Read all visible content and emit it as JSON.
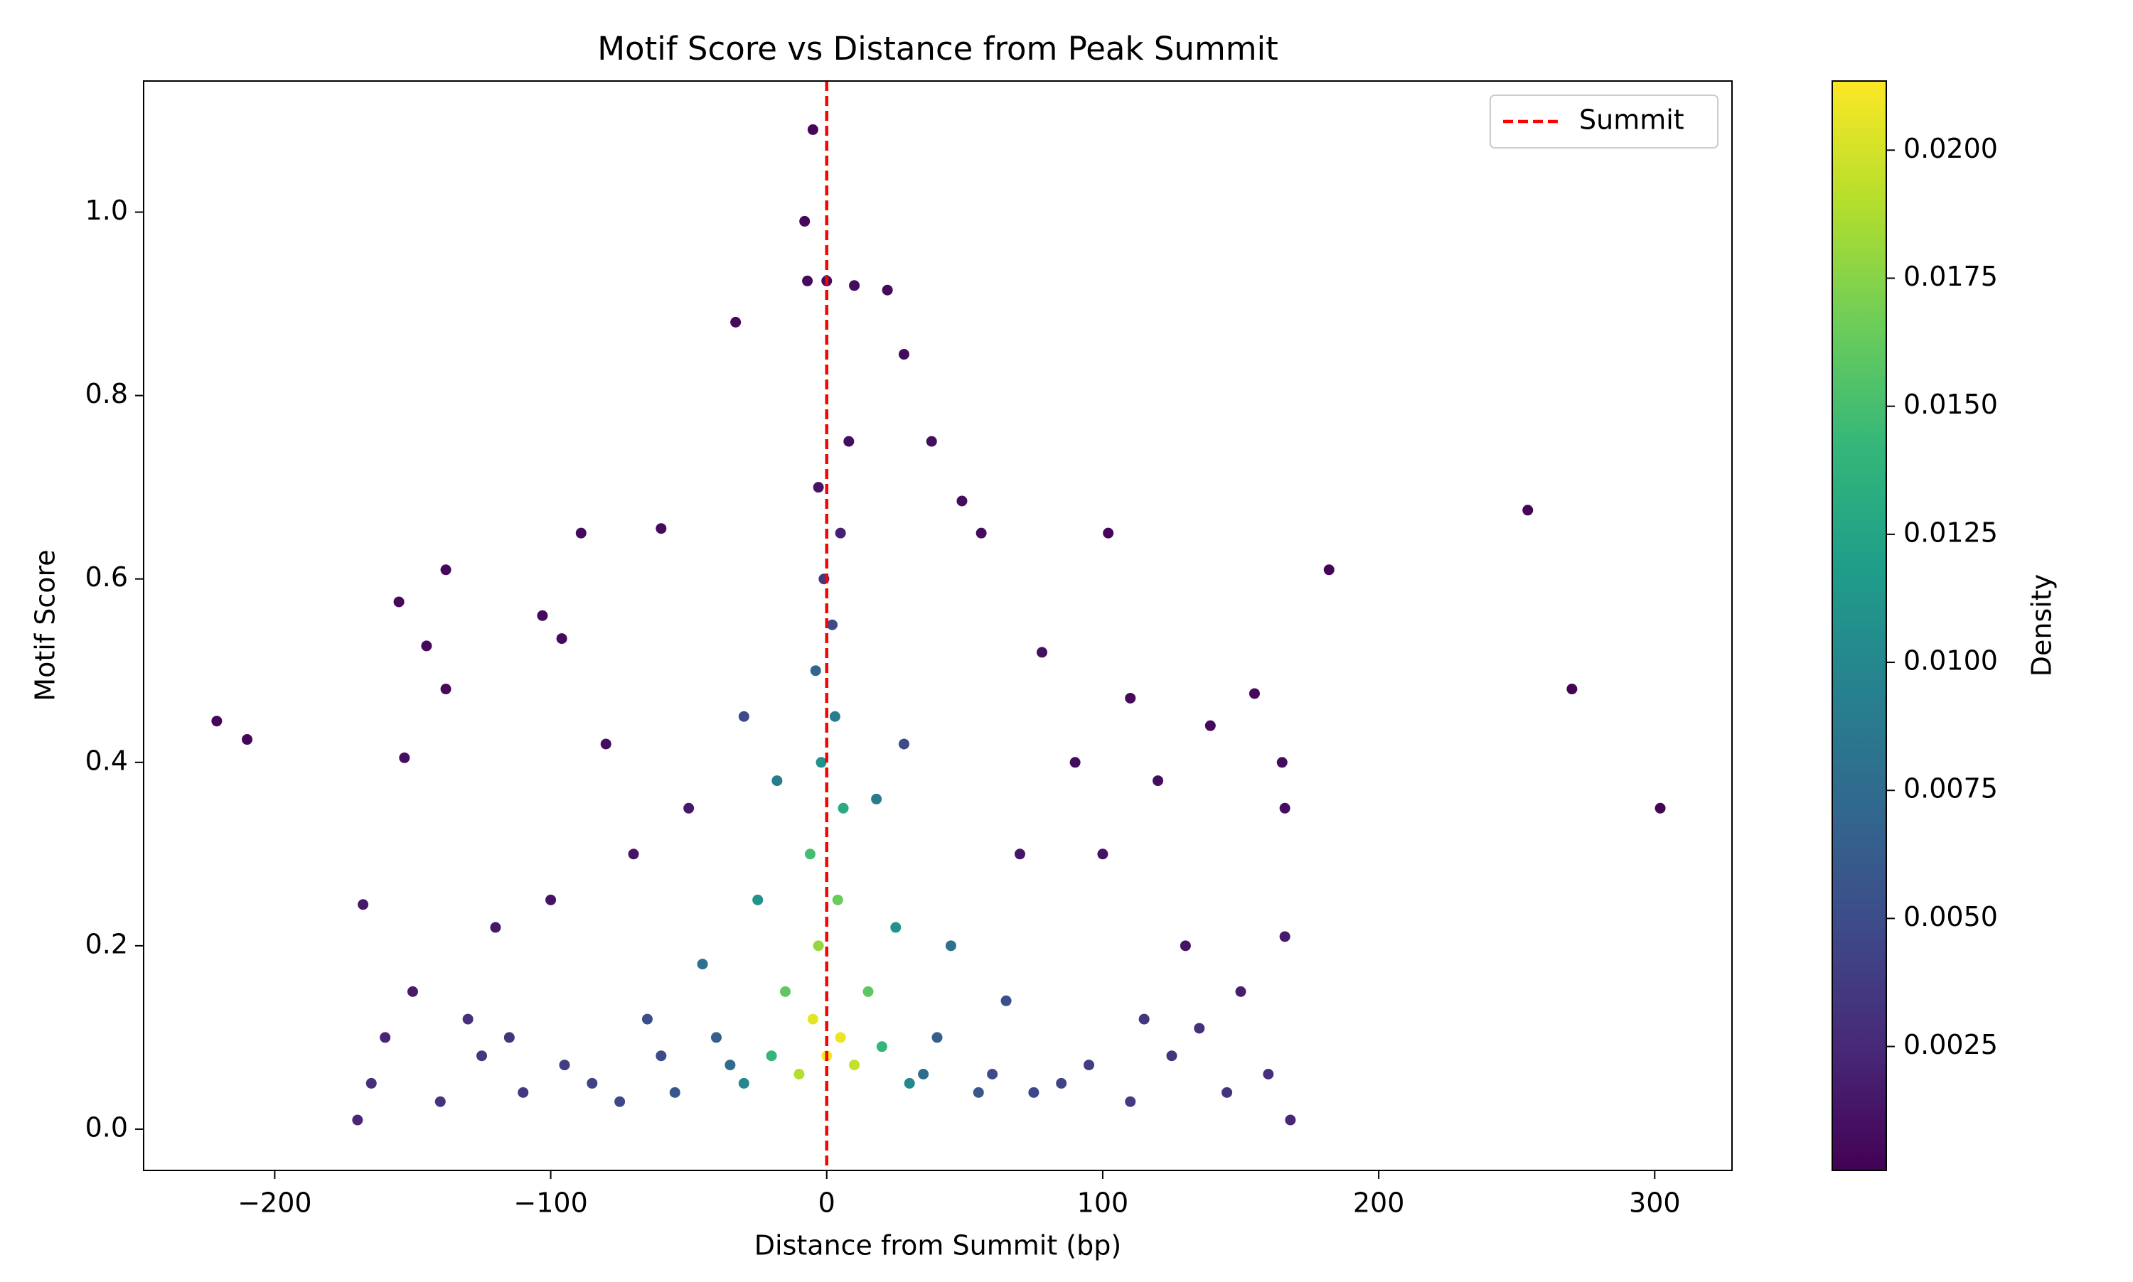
{
  "chart_data": {
    "type": "scatter",
    "title": "Motif Score vs Distance from Peak Summit",
    "x_label": "Distance from Summit (bp)",
    "y_label": "Motif Score",
    "colorbar_label": "Density",
    "colormap": "viridis",
    "xlim": [
      -247.5,
      328
    ],
    "ylim": [
      -0.045,
      1.143
    ],
    "clim": [
      8e-05,
      0.02135
    ],
    "xticks": [
      {
        "value": -200,
        "label": "−200"
      },
      {
        "value": -100,
        "label": "−100"
      },
      0,
      100,
      200,
      300
    ],
    "yticks": [
      {
        "value": 0,
        "label": "0.0"
      },
      0.2,
      0.4,
      0.6,
      0.8,
      {
        "value": 1,
        "label": "1.0"
      }
    ],
    "cticks": [
      0.0025,
      {
        "value": 0.005,
        "label": "0.0050"
      },
      0.0075,
      {
        "value": 0.01,
        "label": "0.0100"
      },
      0.0125,
      {
        "value": 0.015,
        "label": "0.0150"
      },
      0.0175,
      {
        "value": 0.02,
        "label": "0.0200"
      }
    ],
    "vline": {
      "x": 0,
      "name": "Summit",
      "color": "#ff0000"
    },
    "legend": "upper right",
    "series": [
      {
        "x": [
          -221,
          -210,
          -5,
          -8,
          254,
          270,
          302,
          182,
          102,
          -138,
          -155,
          -89,
          -60,
          -103,
          -96,
          -145,
          -138,
          155,
          110,
          139,
          165,
          166,
          -33,
          -7,
          0,
          10,
          22,
          28,
          38,
          49,
          56,
          78,
          -153,
          -168,
          166,
          120,
          -80,
          90,
          -3,
          8,
          -100,
          100,
          -120,
          -70,
          70,
          130,
          -50,
          150,
          -150,
          -160,
          -170,
          168,
          -165,
          -140,
          -125,
          -110,
          -95,
          160,
          145,
          125,
          110,
          95,
          -130,
          -115,
          -85,
          135,
          115,
          85,
          -75,
          75,
          -60,
          60,
          -30,
          28,
          5,
          -1,
          2,
          -4,
          -65,
          65,
          -40,
          40,
          -18,
          18,
          -55,
          55,
          -35,
          35,
          -25,
          25,
          -45,
          45,
          -30,
          30,
          3,
          -2,
          -20,
          20,
          6,
          -6,
          -15,
          15,
          4,
          -3,
          -10,
          10,
          5,
          -5,
          0
        ],
        "values": [
          0.445,
          0.425,
          1.09,
          0.99,
          0.675,
          0.48,
          0.35,
          0.61,
          0.65,
          0.61,
          0.575,
          0.65,
          0.655,
          0.56,
          0.535,
          0.527,
          0.48,
          0.475,
          0.47,
          0.44,
          0.4,
          0.35,
          0.88,
          0.925,
          0.925,
          0.92,
          0.915,
          0.845,
          0.75,
          0.685,
          0.65,
          0.52,
          0.405,
          0.245,
          0.21,
          0.38,
          0.42,
          0.4,
          0.7,
          0.75,
          0.25,
          0.3,
          0.22,
          0.3,
          0.3,
          0.2,
          0.35,
          0.15,
          0.15,
          0.1,
          0.01,
          0.01,
          0.05,
          0.03,
          0.08,
          0.04,
          0.07,
          0.06,
          0.04,
          0.08,
          0.03,
          0.07,
          0.12,
          0.1,
          0.05,
          0.11,
          0.12,
          0.05,
          0.03,
          0.04,
          0.08,
          0.06,
          0.45,
          0.42,
          0.65,
          0.6,
          0.55,
          0.5,
          0.12,
          0.14,
          0.1,
          0.1,
          0.38,
          0.36,
          0.04,
          0.04,
          0.07,
          0.06,
          0.25,
          0.22,
          0.18,
          0.2,
          0.05,
          0.05,
          0.45,
          0.4,
          0.08,
          0.09,
          0.35,
          0.3,
          0.15,
          0.15,
          0.25,
          0.2,
          0.06,
          0.07,
          0.1,
          0.12,
          0.08
        ],
        "density": [
          0.0004,
          0.0004,
          0.0004,
          0.0005,
          0.0003,
          0.0003,
          0.0003,
          0.0003,
          0.0004,
          0.0005,
          0.0005,
          0.0006,
          0.0007,
          0.0006,
          0.0006,
          0.0005,
          0.0006,
          0.0005,
          0.0006,
          0.0006,
          0.0007,
          0.0008,
          0.0006,
          0.0006,
          0.0007,
          0.0007,
          0.0006,
          0.0007,
          0.0008,
          0.0008,
          0.0008,
          0.0009,
          0.0009,
          0.0015,
          0.0016,
          0.0008,
          0.0008,
          0.0007,
          0.0012,
          0.0008,
          0.0012,
          0.0011,
          0.0015,
          0.0012,
          0.0013,
          0.0013,
          0.0015,
          0.0018,
          0.0016,
          0.0022,
          0.0024,
          0.0024,
          0.003,
          0.0032,
          0.0034,
          0.0036,
          0.0038,
          0.003,
          0.0033,
          0.0035,
          0.0037,
          0.004,
          0.003,
          0.0033,
          0.0042,
          0.003,
          0.0034,
          0.0044,
          0.0046,
          0.0046,
          0.0048,
          0.0048,
          0.005,
          0.005,
          0.002,
          0.0035,
          0.005,
          0.007,
          0.0052,
          0.0052,
          0.0065,
          0.0065,
          0.009,
          0.009,
          0.0058,
          0.0058,
          0.0075,
          0.0075,
          0.011,
          0.011,
          0.008,
          0.008,
          0.01,
          0.01,
          0.009,
          0.011,
          0.014,
          0.014,
          0.013,
          0.015,
          0.016,
          0.016,
          0.0165,
          0.018,
          0.019,
          0.0195,
          0.0208,
          0.0205,
          0.0212
        ]
      }
    ]
  }
}
